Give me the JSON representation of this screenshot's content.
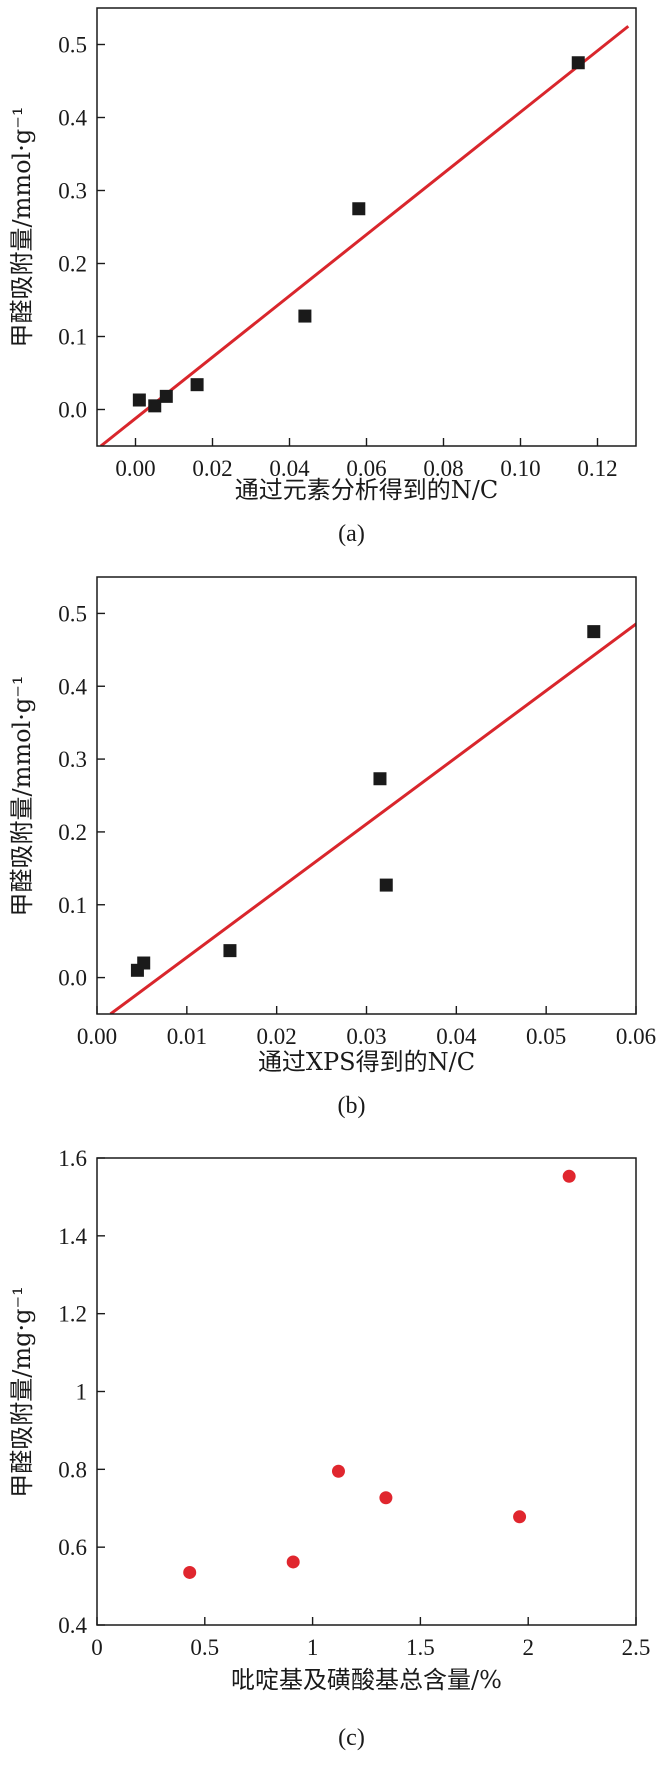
{
  "chart_data": [
    {
      "type": "scatter",
      "panel_label": "(a)",
      "xlabel": "通过元素分析得到的N/C",
      "ylabel": "甲醛吸附量/mmol·g⁻¹",
      "xlim": [
        -0.01,
        0.13
      ],
      "ylim": [
        -0.05,
        0.55
      ],
      "xticks": [
        0.0,
        0.02,
        0.04,
        0.06,
        0.08,
        0.1,
        0.12
      ],
      "xtick_labels": [
        "0.00",
        "0.02",
        "0.04",
        "0.06",
        "0.08",
        "0.10",
        "0.12"
      ],
      "yticks": [
        0.0,
        0.1,
        0.2,
        0.3,
        0.4,
        0.5
      ],
      "ytick_labels": [
        "0.0",
        "0.1",
        "0.2",
        "0.3",
        "0.4",
        "0.5"
      ],
      "marker": "square",
      "marker_color": "#1a1a1a",
      "points": [
        {
          "x": 0.001,
          "y": 0.013
        },
        {
          "x": 0.005,
          "y": 0.005
        },
        {
          "x": 0.008,
          "y": 0.018
        },
        {
          "x": 0.016,
          "y": 0.034
        },
        {
          "x": 0.044,
          "y": 0.128
        },
        {
          "x": 0.058,
          "y": 0.275
        },
        {
          "x": 0.115,
          "y": 0.475
        }
      ],
      "fit_line": {
        "x": [
          -0.009,
          0.128
        ],
        "y": [
          -0.05,
          0.525
        ],
        "color": "#d9262c"
      }
    },
    {
      "type": "scatter",
      "panel_label": "(b)",
      "xlabel": "通过XPS得到的N/C",
      "ylabel": "甲醛吸附量/mmol·g⁻¹",
      "xlim": [
        0.0,
        0.06
      ],
      "ylim": [
        -0.05,
        0.55
      ],
      "xticks": [
        0.0,
        0.01,
        0.02,
        0.03,
        0.04,
        0.05,
        0.06
      ],
      "xtick_labels": [
        "0.00",
        "0.01",
        "0.02",
        "0.03",
        "0.04",
        "0.05",
        "0.06"
      ],
      "yticks": [
        0.0,
        0.1,
        0.2,
        0.3,
        0.4,
        0.5
      ],
      "ytick_labels": [
        "0.0",
        "0.1",
        "0.2",
        "0.3",
        "0.4",
        "0.5"
      ],
      "marker": "square",
      "marker_color": "#1a1a1a",
      "points": [
        {
          "x": 0.0045,
          "y": 0.01
        },
        {
          "x": 0.0052,
          "y": 0.02
        },
        {
          "x": 0.0148,
          "y": 0.037
        },
        {
          "x": 0.0315,
          "y": 0.273
        },
        {
          "x": 0.0322,
          "y": 0.127
        },
        {
          "x": 0.0553,
          "y": 0.475
        }
      ],
      "fit_line": {
        "x": [
          0.0015,
          0.0605
        ],
        "y": [
          -0.05,
          0.49
        ],
        "color": "#d9262c"
      }
    },
    {
      "type": "scatter",
      "panel_label": "(c)",
      "xlabel": "吡啶基及磺酸基总含量/%",
      "ylabel": "甲醛吸附量/mg·g⁻¹",
      "xlim": [
        0,
        2.5
      ],
      "ylim": [
        0.4,
        1.6
      ],
      "xticks": [
        0,
        0.5,
        1,
        1.5,
        2,
        2.5
      ],
      "xtick_labels": [
        "0",
        "0.5",
        "1",
        "1.5",
        "2",
        "2.5"
      ],
      "yticks": [
        0.4,
        0.6,
        0.8,
        1.0,
        1.2,
        1.4,
        1.6
      ],
      "ytick_labels": [
        "0.4",
        "0.6",
        "0.8",
        "1",
        "1.2",
        "1.4",
        "1.6"
      ],
      "marker": "circle",
      "marker_color": "#e0262e",
      "points": [
        {
          "x": 0.43,
          "y": 0.535
        },
        {
          "x": 0.91,
          "y": 0.562
        },
        {
          "x": 1.12,
          "y": 0.795
        },
        {
          "x": 1.34,
          "y": 0.727
        },
        {
          "x": 1.96,
          "y": 0.678
        },
        {
          "x": 2.19,
          "y": 1.553
        }
      ]
    }
  ]
}
